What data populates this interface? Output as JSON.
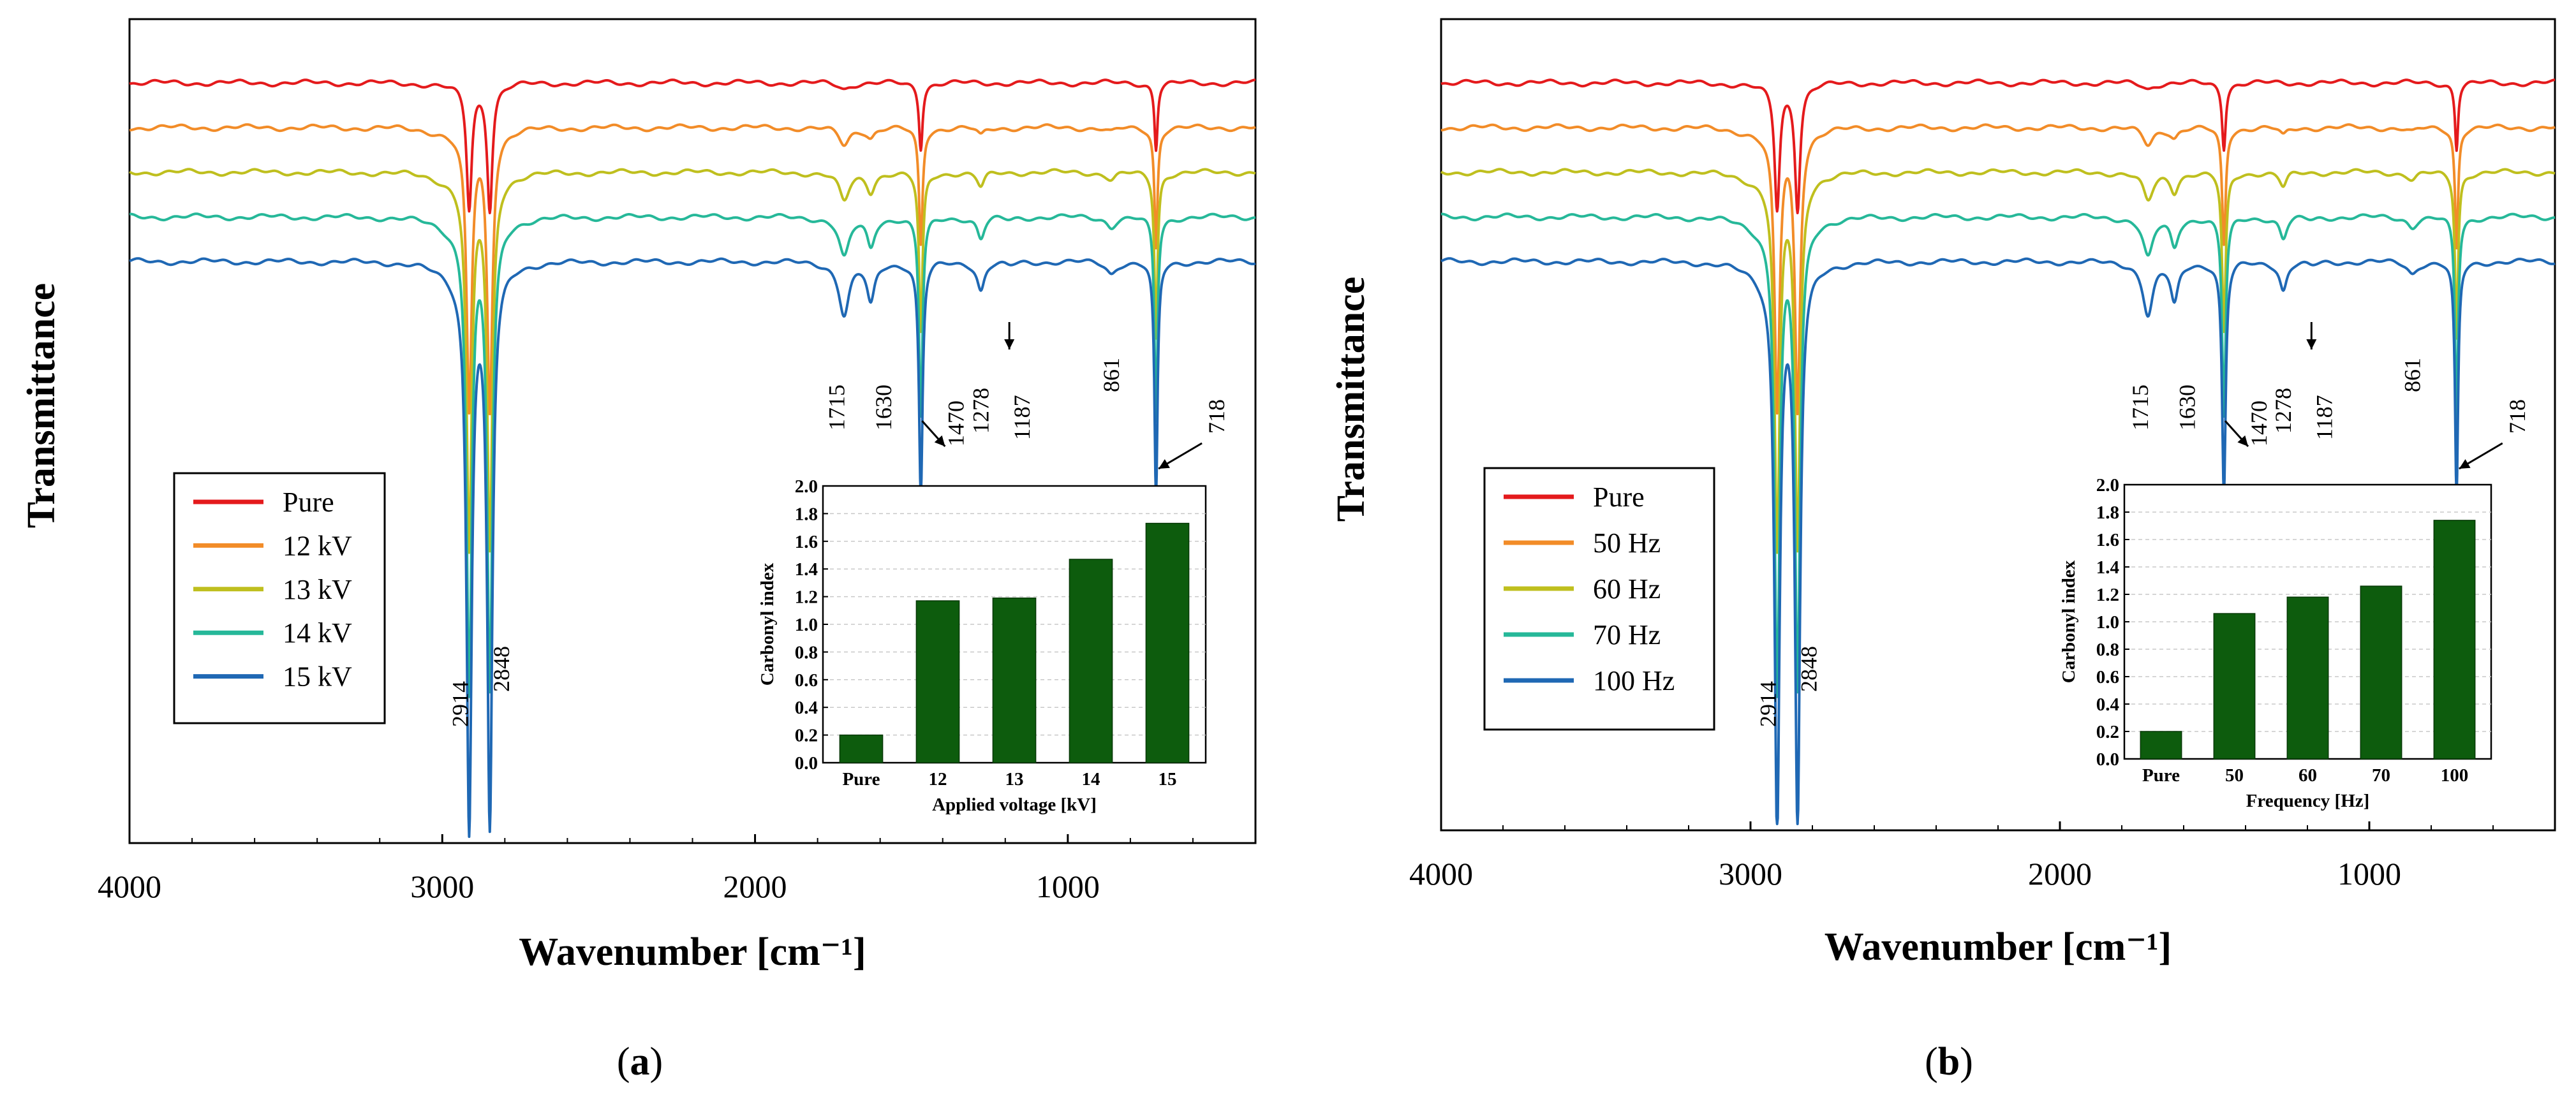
{
  "figure": {
    "panel_labels": [
      "(a)",
      "(b)"
    ]
  },
  "chart_data": [
    {
      "type": "line",
      "panel": "a",
      "xlabel": "Wavenumber [cm⁻¹]",
      "ylabel": "Transmittance",
      "xlim": [
        4000,
        400
      ],
      "xticks": [
        "4000",
        "3000",
        "2000",
        "1000"
      ],
      "legend_position": "lower-left",
      "series": [
        {
          "name": "Pure",
          "color": "#e41a1c",
          "band_depths": {
            "2914": 0.2,
            "2848": 0.2,
            "1715": 0.06,
            "1470": 0.22,
            "718": 0.22
          }
        },
        {
          "name": "12 kV",
          "color": "#f28c28",
          "band_depths": {
            "2914": 0.45,
            "2848": 0.45,
            "1715": 0.18,
            "1630": 0.1,
            "1470": 0.4,
            "1278": 0.1,
            "861": 0.08,
            "718": 0.4
          }
        },
        {
          "name": "13 kV",
          "color": "#bfbf1e",
          "band_depths": {
            "2914": 0.6,
            "2848": 0.6,
            "1715": 0.3,
            "1630": 0.2,
            "1470": 0.55,
            "1278": 0.18,
            "861": 0.12,
            "718": 0.55
          }
        },
        {
          "name": "14 kV",
          "color": "#26b899",
          "band_depths": {
            "2914": 0.75,
            "2848": 0.75,
            "1715": 0.42,
            "1630": 0.32,
            "1470": 0.68,
            "1278": 0.26,
            "1187": 0.06,
            "861": 0.16,
            "718": 0.68
          }
        },
        {
          "name": "15 kV",
          "color": "#1f68b4",
          "band_depths": {
            "2914": 0.9,
            "2848": 0.9,
            "1715": 0.55,
            "1630": 0.45,
            "1470": 0.8,
            "1278": 0.34,
            "1187": 0.1,
            "861": 0.2,
            "718": 0.8
          }
        }
      ],
      "peak_labels": [
        "2914",
        "2848",
        "1715",
        "1630",
        "1470",
        "1278",
        "1187",
        "861",
        "718"
      ],
      "inset": {
        "type": "bar",
        "categories": [
          "Pure",
          "12",
          "13",
          "14",
          "15"
        ],
        "values": [
          0.2,
          1.17,
          1.19,
          1.47,
          1.73
        ],
        "ylabel": "Carbonyl index",
        "xlabel": "Applied voltage [kV]",
        "ylim": [
          0,
          2.0
        ],
        "yticks": [
          "0.0",
          "0.2",
          "0.4",
          "0.6",
          "0.8",
          "1.0",
          "1.2",
          "1.4",
          "1.6",
          "1.8",
          "2.0"
        ],
        "bar_color": "#0d5c0d",
        "grid": true
      }
    },
    {
      "type": "line",
      "panel": "b",
      "xlabel": "Wavenumber [cm⁻¹]",
      "ylabel": "Transmittance",
      "xlim": [
        4000,
        400
      ],
      "xticks": [
        "4000",
        "3000",
        "2000",
        "1000"
      ],
      "legend_position": "lower-left",
      "series": [
        {
          "name": "Pure",
          "color": "#e41a1c",
          "band_depths": {
            "2914": 0.2,
            "2848": 0.2,
            "1715": 0.06,
            "1470": 0.22,
            "718": 0.22
          }
        },
        {
          "name": "50 Hz",
          "color": "#f28c28",
          "band_depths": {
            "2914": 0.45,
            "2848": 0.45,
            "1715": 0.18,
            "1630": 0.1,
            "1470": 0.4,
            "1278": 0.1,
            "861": 0.08,
            "718": 0.4
          }
        },
        {
          "name": "60 Hz",
          "color": "#bfbf1e",
          "band_depths": {
            "2914": 0.6,
            "2848": 0.6,
            "1715": 0.3,
            "1630": 0.2,
            "1470": 0.55,
            "1278": 0.18,
            "861": 0.12,
            "718": 0.55
          }
        },
        {
          "name": "70 Hz",
          "color": "#26b899",
          "band_depths": {
            "2914": 0.75,
            "2848": 0.75,
            "1715": 0.42,
            "1630": 0.32,
            "1470": 0.68,
            "1278": 0.26,
            "1187": 0.06,
            "861": 0.16,
            "718": 0.68
          }
        },
        {
          "name": "100 Hz",
          "color": "#1f68b4",
          "band_depths": {
            "2914": 0.9,
            "2848": 0.9,
            "1715": 0.55,
            "1630": 0.45,
            "1470": 0.8,
            "1278": 0.34,
            "1187": 0.1,
            "861": 0.2,
            "718": 0.8
          }
        }
      ],
      "peak_labels": [
        "2914",
        "2848",
        "1715",
        "1630",
        "1470",
        "1278",
        "1187",
        "861",
        "718"
      ],
      "inset": {
        "type": "bar",
        "categories": [
          "Pure",
          "50",
          "60",
          "70",
          "100"
        ],
        "values": [
          0.2,
          1.06,
          1.18,
          1.26,
          1.74
        ],
        "ylabel": "Carbonyl index",
        "xlabel": "Frequency [Hz]",
        "ylim": [
          0,
          2.0
        ],
        "yticks": [
          "0.0",
          "0.2",
          "0.4",
          "0.6",
          "0.8",
          "1.0",
          "1.2",
          "1.4",
          "1.6",
          "1.8",
          "2.0"
        ],
        "bar_color": "#0d5c0d",
        "grid": true
      }
    }
  ]
}
